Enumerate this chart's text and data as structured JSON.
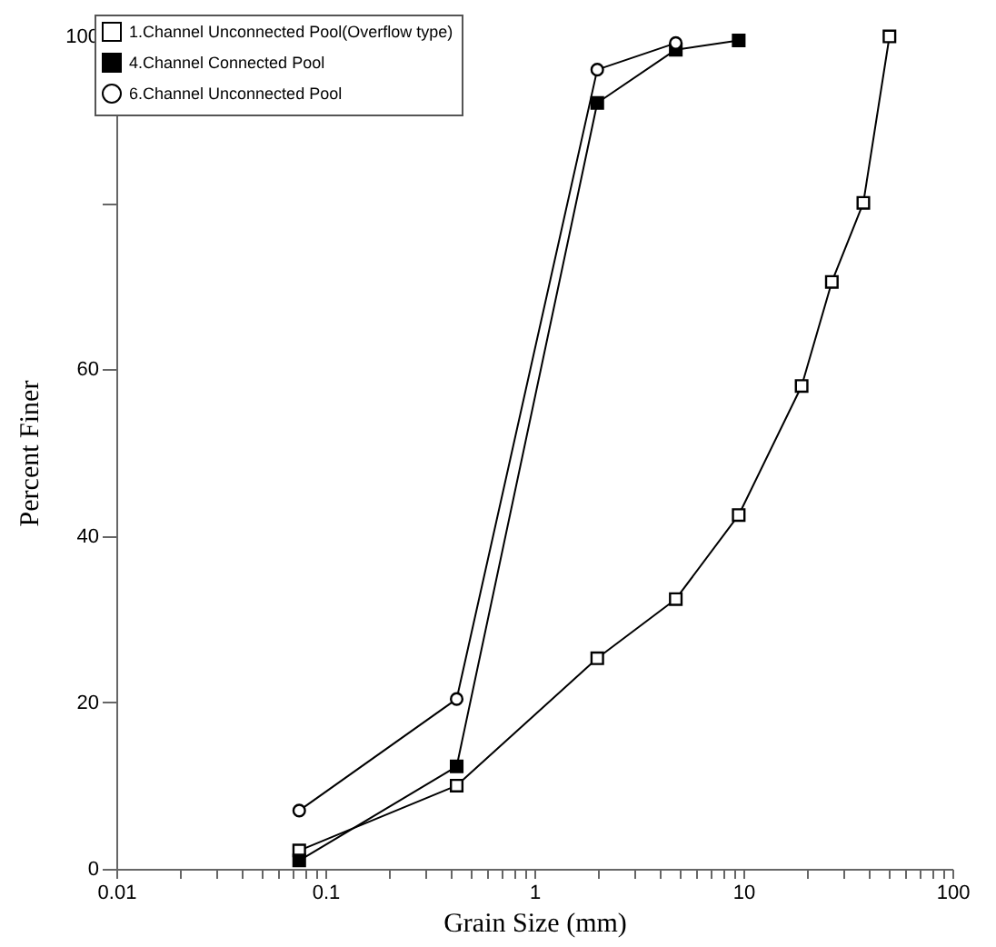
{
  "chart_data": {
    "type": "line",
    "xlabel": "Grain Size (mm)",
    "ylabel": "Percent Finer",
    "log": "x",
    "grid": false,
    "legend": "top left",
    "xlim": [
      0.01,
      100
    ],
    "xticks": [
      0.01,
      {
        "value": 0.02,
        "label": null
      },
      {
        "value": 0.03,
        "label": null
      },
      {
        "value": 0.04,
        "label": null
      },
      {
        "value": 0.05,
        "label": null
      },
      {
        "value": 0.06,
        "label": null
      },
      {
        "value": 0.07,
        "label": null
      },
      {
        "value": 0.08,
        "label": null
      },
      {
        "value": 0.09,
        "label": null
      },
      0.1,
      {
        "value": 0.2,
        "label": null
      },
      {
        "value": 0.3,
        "label": null
      },
      {
        "value": 0.4,
        "label": null
      },
      {
        "value": 0.5,
        "label": null
      },
      {
        "value": 0.6,
        "label": null
      },
      {
        "value": 0.7,
        "label": null
      },
      {
        "value": 0.8,
        "label": null
      },
      {
        "value": 0.9,
        "label": null
      },
      1,
      {
        "value": 2,
        "label": null
      },
      {
        "value": 3,
        "label": null
      },
      {
        "value": 4,
        "label": null
      },
      {
        "value": 5,
        "label": null
      },
      {
        "value": 6,
        "label": null
      },
      {
        "value": 7,
        "label": null
      },
      {
        "value": 8,
        "label": null
      },
      {
        "value": 9,
        "label": null
      },
      10,
      {
        "value": 20,
        "label": null
      },
      {
        "value": 30,
        "label": null
      },
      {
        "value": 40,
        "label": null
      },
      {
        "value": 50,
        "label": null
      },
      {
        "value": 60,
        "label": null
      },
      {
        "value": 70,
        "label": null
      },
      {
        "value": 80,
        "label": null
      },
      {
        "value": 90,
        "label": null
      },
      100
    ],
    "ylim": [
      0,
      100
    ],
    "yticks": [
      0,
      20,
      40,
      60,
      {
        "value": 80,
        "label": null
      },
      100
    ],
    "series": [
      {
        "name": "1.Channel Unconnected Pool(Overflow type)",
        "color": "#000000",
        "marker": "square",
        "x": [
          0.075,
          0.425,
          2,
          4.75,
          9.5,
          19,
          26.5,
          37.5,
          50
        ],
        "values": [
          2.2,
          10,
          25.3,
          32.4,
          42.5,
          58,
          70.5,
          80,
          100
        ]
      },
      {
        "name": "4.Channel Connected Pool",
        "color": "#000000",
        "marker": "square",
        "colors": [
          "#000000",
          "#000000",
          "#000000",
          "#000000",
          "#000000"
        ],
        "x": [
          0.075,
          0.425,
          2,
          4.75,
          9.5
        ],
        "values": [
          1,
          12.3,
          92,
          98.4,
          99.5
        ]
      },
      {
        "name": "6.Channel Unconnected Pool",
        "color": "#000000",
        "marker": "circle",
        "x": [
          0.075,
          0.425,
          2,
          4.75
        ],
        "values": [
          7,
          20.4,
          96,
          99.2
        ]
      }
    ]
  }
}
